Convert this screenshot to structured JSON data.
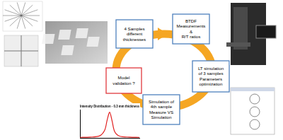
{
  "nodes": [
    {
      "lines": [
        "4 Samples",
        "different",
        "thicknesses"
      ],
      "color": "#4f81bd"
    },
    {
      "lines": [
        "BTDF",
        "Measurements",
        "&",
        "R/T ratios"
      ],
      "color": "#4f81bd"
    },
    {
      "lines": [
        "LT simulation",
        "of 3 samples",
        "Parameters",
        "optimization"
      ],
      "color": "#4f81bd"
    },
    {
      "lines": [
        "Simulation of",
        "4th sample",
        "Measure VS",
        "Simulation"
      ],
      "color": "#4f81bd"
    },
    {
      "lines": [
        "Model",
        "validation ?"
      ],
      "color": "#e0393e"
    }
  ],
  "cycle_color": "#f5a623",
  "chart_data": {
    "type": "line",
    "title": "Intensity Distribution - 0.3 mm thickness",
    "x": [
      -60,
      -40,
      -20,
      -10,
      -5,
      0,
      5,
      10,
      20,
      40,
      60
    ],
    "values": [
      0.02,
      0.03,
      0.08,
      0.3,
      0.7,
      1,
      0.65,
      0.25,
      0.07,
      0.03,
      0.02
    ],
    "color": "#e02020",
    "xlim": [
      -60,
      60
    ],
    "ylim": [
      0,
      1.1
    ],
    "grid": false,
    "tick_labels": false
  }
}
